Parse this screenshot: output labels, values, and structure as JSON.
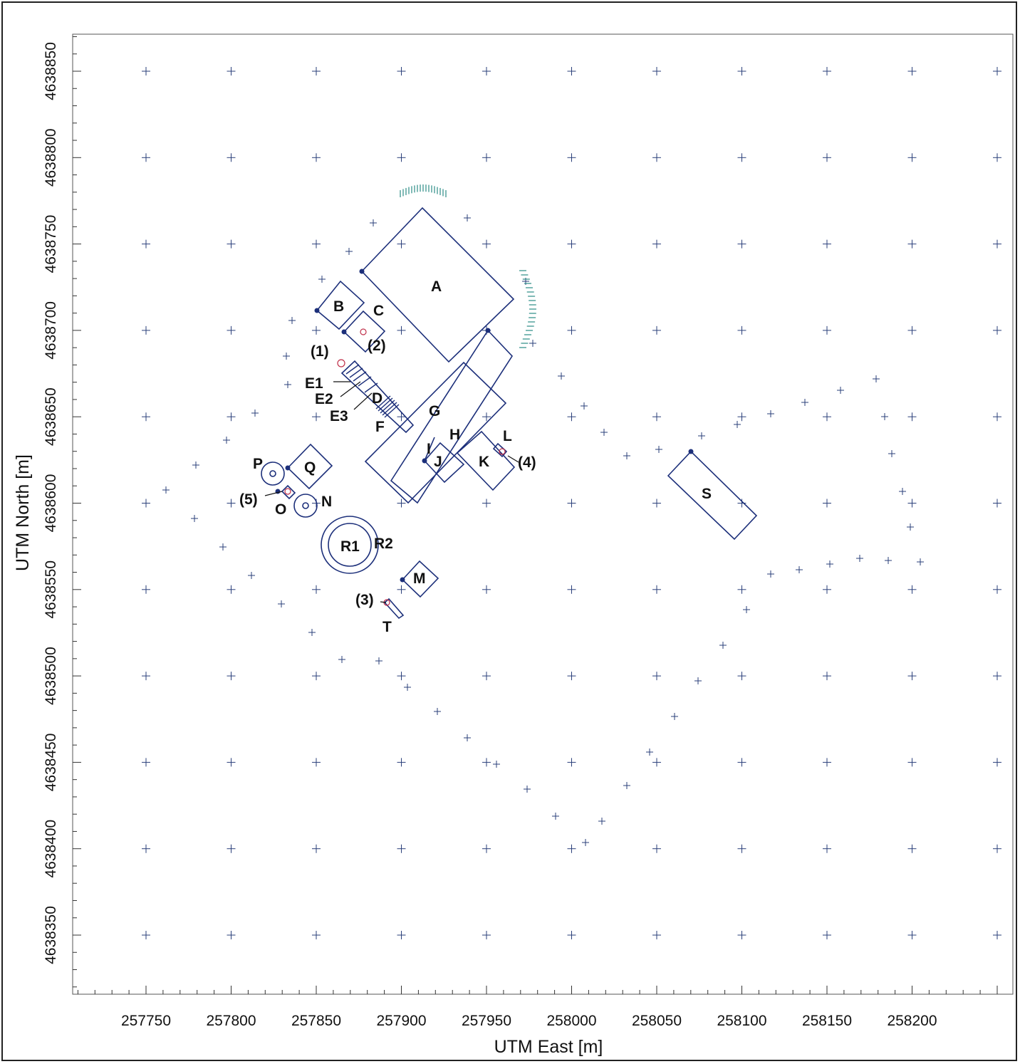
{
  "axes": {
    "x_title": "UTM East [m]",
    "y_title": "UTM North [m]",
    "x_ticks": [
      "257750",
      "257800",
      "257850",
      "257900",
      "257950",
      "258000",
      "258050",
      "258100",
      "258150",
      "258200"
    ],
    "y_ticks": [
      "4638850",
      "4638800",
      "4638750",
      "4638700",
      "4638650",
      "4638600",
      "4638550",
      "4638500",
      "4638450",
      "4638400",
      "4638350"
    ]
  },
  "labels": {
    "A": "A",
    "B": "B",
    "C": "C",
    "D": "D",
    "E1": "E1",
    "E2": "E2",
    "E3": "E3",
    "F": "F",
    "G": "G",
    "H": "H",
    "I": "I",
    "J": "J",
    "K": "K",
    "L": "L",
    "M": "M",
    "N": "N",
    "O": "O",
    "P": "P",
    "Q": "Q",
    "R1": "R1",
    "R2": "R2",
    "S": "S",
    "T": "T",
    "src1": "(1)",
    "src2": "(2)",
    "src3": "(3)",
    "src4": "(4)",
    "src5": "(5)"
  },
  "colors": {
    "buildings": "#1c2f7a",
    "receptors": "#2a3f7a",
    "fenceline_receptors": "#2a8c86",
    "sources": "#c0304a"
  },
  "receptor_grid": {
    "east_values": [
      257750,
      257800,
      257850,
      257900,
      257950,
      258000,
      258050,
      258100,
      258150,
      258200,
      258250
    ],
    "north_values": [
      4638850,
      4638800,
      4638750,
      4638700,
      4638650,
      4638600,
      4638550,
      4638500,
      4638450,
      4638400,
      4638350
    ]
  }
}
